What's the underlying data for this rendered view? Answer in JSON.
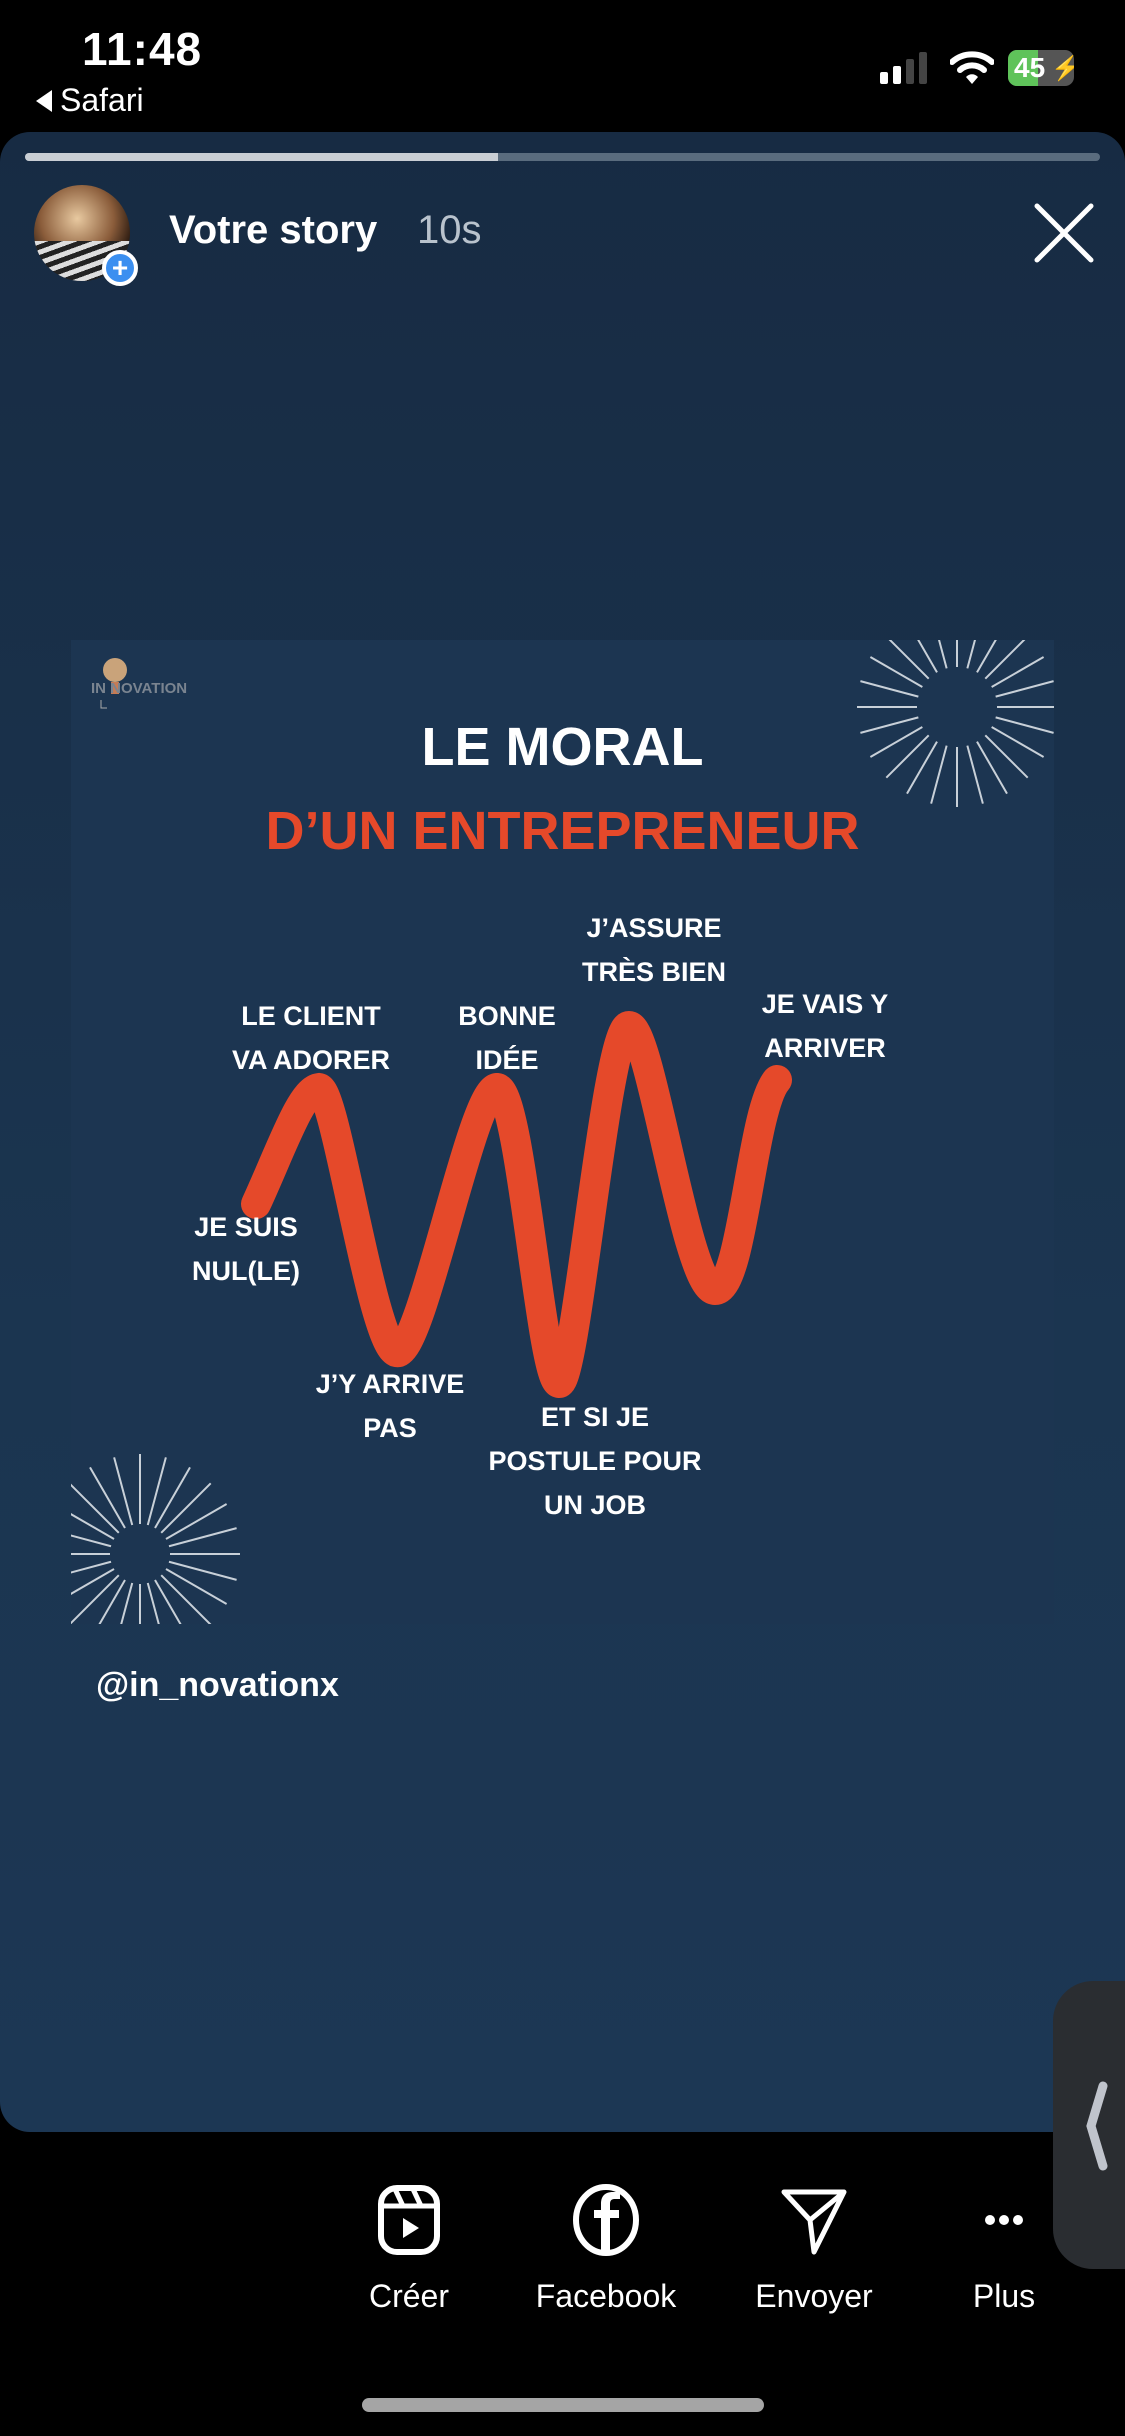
{
  "status_bar": {
    "time": "11:48",
    "back_label": "Safari",
    "battery": "45"
  },
  "story": {
    "title": "Votre story",
    "elapsed": "10s",
    "progress_percent": 44,
    "icons": [
      "avatar",
      "add-story-icon",
      "close-icon"
    ]
  },
  "post": {
    "logo_text": "IN NOVATION",
    "title_line1": "LE MORAL",
    "title_line2": "D’UN ENTREPRENEUR",
    "accent_color": "#e5492a",
    "labels": {
      "client": [
        "LE CLIENT",
        "VA ADORER"
      ],
      "bonne": [
        "BONNE",
        "IDÉE"
      ],
      "assure": [
        "J’ASSURE",
        "TRÈS BIEN"
      ],
      "vais": [
        "JE VAIS Y",
        "ARRIVER"
      ],
      "nul": [
        "JE SUIS",
        "NUL(LE)"
      ],
      "arrive": [
        "J’Y ARRIVE",
        "PAS"
      ],
      "postule": [
        "ET SI JE",
        "POSTULE POUR",
        "UN JOB"
      ]
    },
    "mention": "@in_novationx"
  },
  "actions": [
    {
      "label": "Créer",
      "icon": "reels-icon"
    },
    {
      "label": "Facebook",
      "icon": "facebook-icon"
    },
    {
      "label": "Envoyer",
      "icon": "send-icon"
    },
    {
      "label": "Plus",
      "icon": "more-icon"
    }
  ]
}
